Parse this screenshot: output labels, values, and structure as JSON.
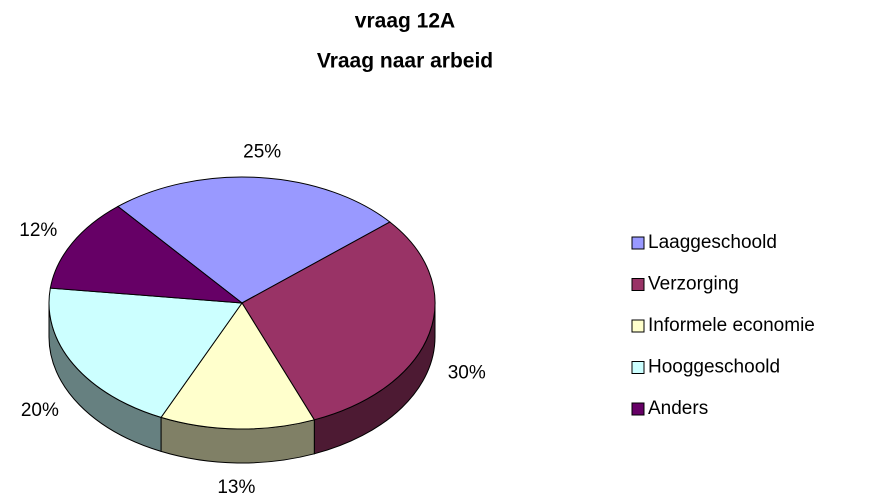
{
  "chart_data": {
    "type": "pie3d",
    "title": "vraag 12A",
    "subtitle": "Vraag naar arbeid",
    "categories": [
      "Laaggeschoold",
      "Verzorging",
      "Informele economie",
      "Hooggeschoold",
      "Anders"
    ],
    "values": [
      25,
      30,
      13,
      20,
      12
    ],
    "value_labels": [
      "25%",
      "30%",
      "13%",
      "20%",
      "12%"
    ],
    "colors": [
      "#9999ff",
      "#993366",
      "#ffffcc",
      "#ccffff",
      "#660066"
    ],
    "legend": "right"
  }
}
